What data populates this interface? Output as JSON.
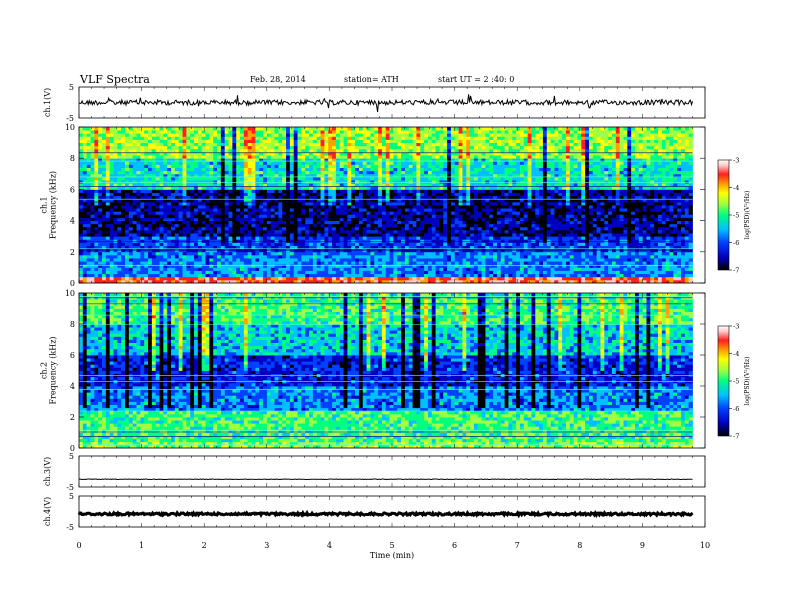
{
  "header": {
    "title": "VLF Spectra",
    "date": "Feb. 28, 2014",
    "station": "station= ATH",
    "start": "start UT = 2 :40: 0"
  },
  "colors": {
    "colormap": [
      "#ffffff",
      "#ffc8c8",
      "#ff2020",
      "#ffa000",
      "#ffff00",
      "#a0ff40",
      "#00ff80",
      "#00c0ff",
      "#0040ff",
      "#0000c0",
      "#000000"
    ]
  },
  "chart_data": [
    {
      "id": "ch1_waveform",
      "type": "line",
      "ylabel": "ch.1(V)",
      "ylim": [
        -5,
        5
      ],
      "yticks": [
        "5",
        "-5"
      ],
      "xlim": [
        0,
        10
      ],
      "baseline": 0,
      "duration_min": 9.8
    },
    {
      "id": "ch1_spectrogram",
      "type": "heatmap",
      "ylabel": "ch.1\nFrequency (kHz)",
      "ylim": [
        0,
        10
      ],
      "yticks": [
        "0",
        "2",
        "4",
        "6",
        "8",
        "10"
      ],
      "xlim": [
        0,
        10
      ],
      "colorbar": {
        "label": "log(PSD)(V²/Hz)",
        "range": [
          -7,
          -3
        ],
        "ticks": [
          "-3",
          "-4",
          "-5",
          "-6",
          "-7"
        ]
      },
      "bands": [
        {
          "from": 0,
          "to": 0.5,
          "level": -3.8
        },
        {
          "from": 0.5,
          "to": 2.0,
          "level": -6.0
        },
        {
          "from": 2.0,
          "to": 3.0,
          "level": -6.3
        },
        {
          "from": 3.0,
          "to": 6.0,
          "level": -6.7
        },
        {
          "from": 6.0,
          "to": 8.0,
          "level": -5.6
        },
        {
          "from": 8.0,
          "to": 10.0,
          "level": -5.0
        }
      ]
    },
    {
      "id": "ch2_spectrogram",
      "type": "heatmap",
      "ylabel": "ch.2\nFrequency (kHz)",
      "ylim": [
        0,
        10
      ],
      "yticks": [
        "0",
        "2",
        "4",
        "6",
        "8",
        "10"
      ],
      "xlim": [
        0,
        10
      ],
      "colorbar": {
        "label": "log(PSD)(V²/Hz)",
        "range": [
          -7,
          -3
        ],
        "ticks": [
          "-3",
          "-4",
          "-5",
          "-6",
          "-7"
        ]
      },
      "bands": [
        {
          "from": 0,
          "to": 0.5,
          "level": -5.0
        },
        {
          "from": 0.5,
          "to": 2.5,
          "level": -5.3
        },
        {
          "from": 2.5,
          "to": 4.0,
          "level": -6.0
        },
        {
          "from": 4.0,
          "to": 6.0,
          "level": -6.4
        },
        {
          "from": 6.0,
          "to": 8.0,
          "level": -5.7
        },
        {
          "from": 8.0,
          "to": 10.0,
          "level": -5.3
        }
      ]
    },
    {
      "id": "ch3_waveform",
      "type": "line",
      "ylabel": "ch.3(V)",
      "ylim": [
        -5,
        5
      ],
      "yticks": [
        "5",
        "-5"
      ],
      "xlim": [
        0,
        10
      ],
      "baseline": -2.5,
      "duration_min": 9.8
    },
    {
      "id": "ch4_waveform",
      "type": "line",
      "ylabel": "ch.4(V)",
      "ylim": [
        -5,
        5
      ],
      "yticks": [
        "5",
        "-5"
      ],
      "xlim": [
        0,
        10
      ],
      "baseline": -0.8,
      "duration_min": 9.8
    }
  ],
  "xaxis": {
    "label": "Time (min)",
    "ticks": [
      "0",
      "1",
      "2",
      "3",
      "4",
      "5",
      "6",
      "7",
      "8",
      "9",
      "10"
    ]
  }
}
